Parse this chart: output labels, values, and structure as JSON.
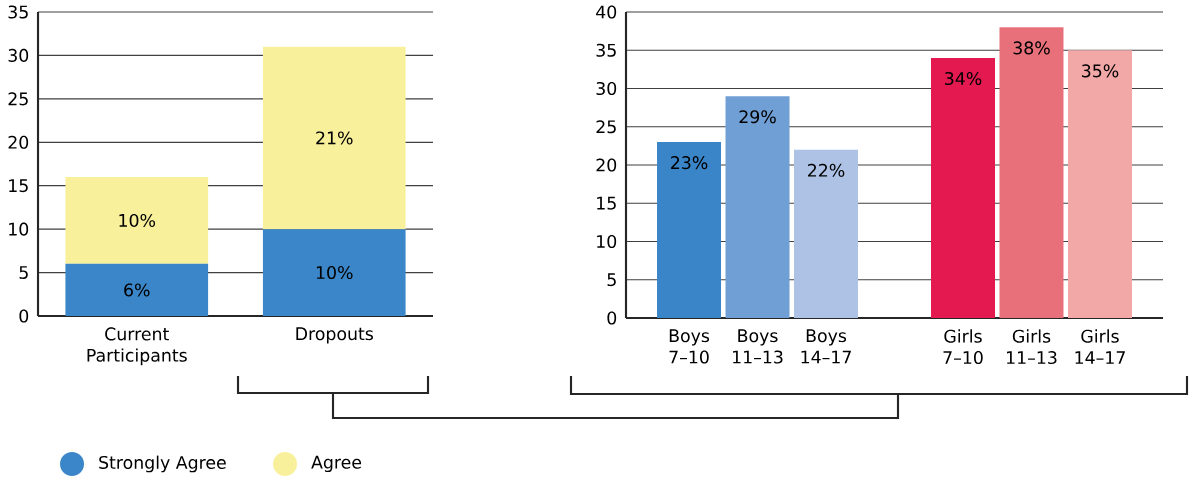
{
  "chart_data": [
    {
      "type": "bar",
      "stacked": true,
      "categories": [
        "Current Participants",
        "Dropouts"
      ],
      "series": [
        {
          "name": "Strongly Agree",
          "color": "#3a86c8",
          "values": [
            6,
            10
          ],
          "value_labels": [
            "6%",
            "10%"
          ]
        },
        {
          "name": "Agree",
          "color": "#f8f09a",
          "values": [
            10,
            21
          ],
          "value_labels": [
            "10%",
            "21%"
          ]
        }
      ],
      "ylim": [
        0,
        35
      ],
      "yticks": [
        0,
        5,
        10,
        15,
        20,
        25,
        30,
        35
      ],
      "grid": "y",
      "legend": "bottom"
    },
    {
      "type": "bar",
      "categories": [
        "Boys 7–10",
        "Boys 11–13",
        "Boys 14–17",
        null,
        "Girls 7–10",
        "Girls 11–13",
        "Girls 14–17"
      ],
      "values": [
        23,
        29,
        22,
        null,
        34,
        38,
        35
      ],
      "colors": [
        "#3a85c8",
        "#6f9fd5",
        "#adc2e5",
        "#ffffff",
        "#e31950",
        "#e8707a",
        "#f2a8a7"
      ],
      "value_labels": [
        "23%",
        "29%",
        "22%",
        null,
        "34%",
        "38%",
        "35%"
      ],
      "ylim": [
        0,
        40
      ],
      "yticks": [
        0,
        5,
        10,
        15,
        20,
        25,
        30,
        35,
        40
      ],
      "grid": "y"
    }
  ]
}
